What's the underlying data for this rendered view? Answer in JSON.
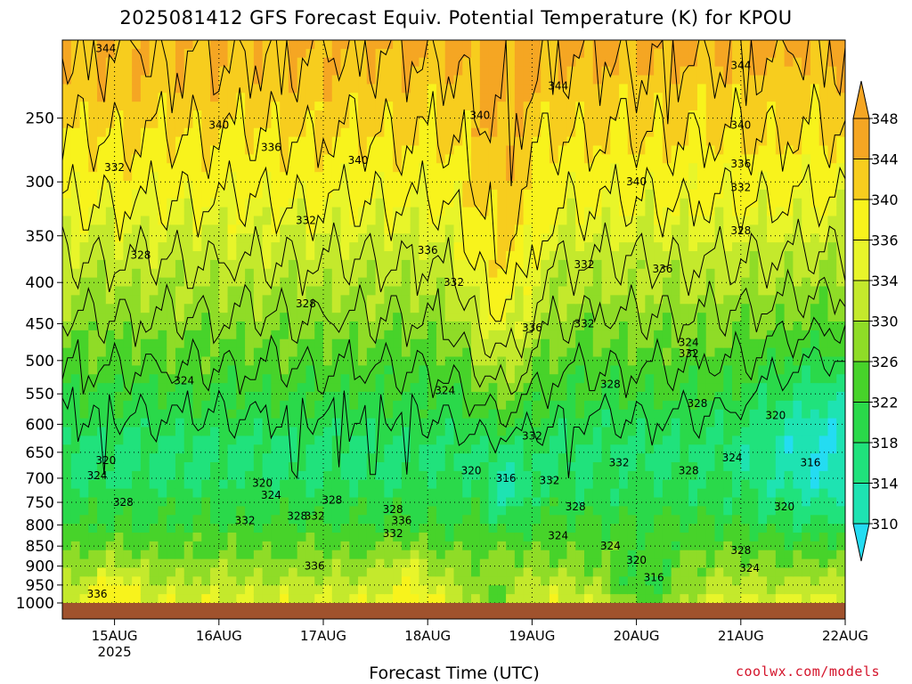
{
  "chart_data": {
    "type": "heatmap",
    "title": "2025081412 GFS Forecast Equiv. Potential Temperature (K) for KPOU",
    "xlabel": "Forecast Time (UTC)",
    "ylabel": "",
    "x_ticks": [
      "15AUG",
      "16AUG",
      "17AUG",
      "18AUG",
      "19AUG",
      "20AUG",
      "21AUG",
      "22AUG"
    ],
    "x_year_label": "2025",
    "y_ticks": [
      250,
      300,
      350,
      400,
      450,
      500,
      550,
      600,
      650,
      700,
      750,
      800,
      850,
      900,
      950,
      1000
    ],
    "y_scale": "log",
    "y_range": [
      200,
      1000
    ],
    "grid": true,
    "colorbar": {
      "levels": [
        310,
        314,
        318,
        322,
        326,
        330,
        334,
        336,
        340,
        344,
        348
      ],
      "colors": [
        "#24dcf2",
        "#1ee3b2",
        "#20e27c",
        "#2ad94a",
        "#47d32a",
        "#8fdc27",
        "#c4e92c",
        "#e8f52a",
        "#f8f31c",
        "#f7cd1e",
        "#f5a623"
      ],
      "placement": "right"
    },
    "contour_labels": [
      {
        "value": "344",
        "x": "14AUG 22Z",
        "p": 205
      },
      {
        "value": "344",
        "x": "19AUG 06Z",
        "p": 228
      },
      {
        "value": "344",
        "x": "21AUG 00Z",
        "p": 215
      },
      {
        "value": "340",
        "x": "16AUG 00Z",
        "p": 255
      },
      {
        "value": "340",
        "x": "17AUG 08Z",
        "p": 282
      },
      {
        "value": "340",
        "x": "18AUG 12Z",
        "p": 248
      },
      {
        "value": "340",
        "x": "20AUG 00Z",
        "p": 300
      },
      {
        "value": "340",
        "x": "21AUG 00Z",
        "p": 255
      },
      {
        "value": "336",
        "x": "16AUG 12Z",
        "p": 272
      },
      {
        "value": "336",
        "x": "18AUG 00Z",
        "p": 365
      },
      {
        "value": "336",
        "x": "19AUG 00Z",
        "p": 455
      },
      {
        "value": "336",
        "x": "20AUG 06Z",
        "p": 385
      },
      {
        "value": "336",
        "x": "21AUG 00Z",
        "p": 285
      },
      {
        "value": "336",
        "x": "14AUG 20Z",
        "p": 975
      },
      {
        "value": "336",
        "x": "16AUG 22Z",
        "p": 900
      },
      {
        "value": "336",
        "x": "17AUG 18Z",
        "p": 790
      },
      {
        "value": "332",
        "x": "15AUG 00Z",
        "p": 288
      },
      {
        "value": "332",
        "x": "16AUG 20Z",
        "p": 335
      },
      {
        "value": "332",
        "x": "18AUG 06Z",
        "p": 400
      },
      {
        "value": "332",
        "x": "19AUG 12Z",
        "p": 380
      },
      {
        "value": "332",
        "x": "19AUG 12Z",
        "p": 450
      },
      {
        "value": "332",
        "x": "20AUG 12Z",
        "p": 490
      },
      {
        "value": "332",
        "x": "21AUG 00Z",
        "p": 305
      },
      {
        "value": "332",
        "x": "19AUG 04Z",
        "p": 705
      },
      {
        "value": "332",
        "x": "19AUG 00Z",
        "p": 620
      },
      {
        "value": "332",
        "x": "16AUG 06Z",
        "p": 790
      },
      {
        "value": "332",
        "x": "16AUG 22Z",
        "p": 780
      },
      {
        "value": "332",
        "x": "17AUG 16Z",
        "p": 820
      },
      {
        "value": "332",
        "x": "19AUG 20Z",
        "p": 670
      },
      {
        "value": "328",
        "x": "15AUG 06Z",
        "p": 370
      },
      {
        "value": "328",
        "x": "16AUG 20Z",
        "p": 425
      },
      {
        "value": "328",
        "x": "21AUG 00Z",
        "p": 345
      },
      {
        "value": "328",
        "x": "19AUG 18Z",
        "p": 535
      },
      {
        "value": "328",
        "x": "20AUG 14Z",
        "p": 565
      },
      {
        "value": "328",
        "x": "20AUG 12Z",
        "p": 685
      },
      {
        "value": "328",
        "x": "15AUG 02Z",
        "p": 750
      },
      {
        "value": "328",
        "x": "16AUG 18Z",
        "p": 780
      },
      {
        "value": "328",
        "x": "17AUG 02Z",
        "p": 745
      },
      {
        "value": "328",
        "x": "17AUG 16Z",
        "p": 765
      },
      {
        "value": "328",
        "x": "19AUG 10Z",
        "p": 760
      },
      {
        "value": "328",
        "x": "21AUG 00Z",
        "p": 860
      },
      {
        "value": "324",
        "x": "15AUG 16Z",
        "p": 530
      },
      {
        "value": "324",
        "x": "18AUG 04Z",
        "p": 545
      },
      {
        "value": "324",
        "x": "20AUG 12Z",
        "p": 475
      },
      {
        "value": "324",
        "x": "20AUG 22Z",
        "p": 660
      },
      {
        "value": "324",
        "x": "14AUG 20Z",
        "p": 695
      },
      {
        "value": "324",
        "x": "16AUG 12Z",
        "p": 735
      },
      {
        "value": "324",
        "x": "19AUG 06Z",
        "p": 825
      },
      {
        "value": "324",
        "x": "19AUG 18Z",
        "p": 850
      },
      {
        "value": "324",
        "x": "21AUG 02Z",
        "p": 905
      },
      {
        "value": "320",
        "x": "14AUG 22Z",
        "p": 665
      },
      {
        "value": "320",
        "x": "16AUG 10Z",
        "p": 710
      },
      {
        "value": "320",
        "x": "18AUG 10Z",
        "p": 685
      },
      {
        "value": "320",
        "x": "21AUG 08Z",
        "p": 585
      },
      {
        "value": "320",
        "x": "21AUG 10Z",
        "p": 760
      },
      {
        "value": "320",
        "x": "20AUG 00Z",
        "p": 885
      },
      {
        "value": "316",
        "x": "18AUG 18Z",
        "p": 700
      },
      {
        "value": "316",
        "x": "21AUG 16Z",
        "p": 670
      },
      {
        "value": "316",
        "x": "20AUG 04Z",
        "p": 930
      }
    ]
  }
}
